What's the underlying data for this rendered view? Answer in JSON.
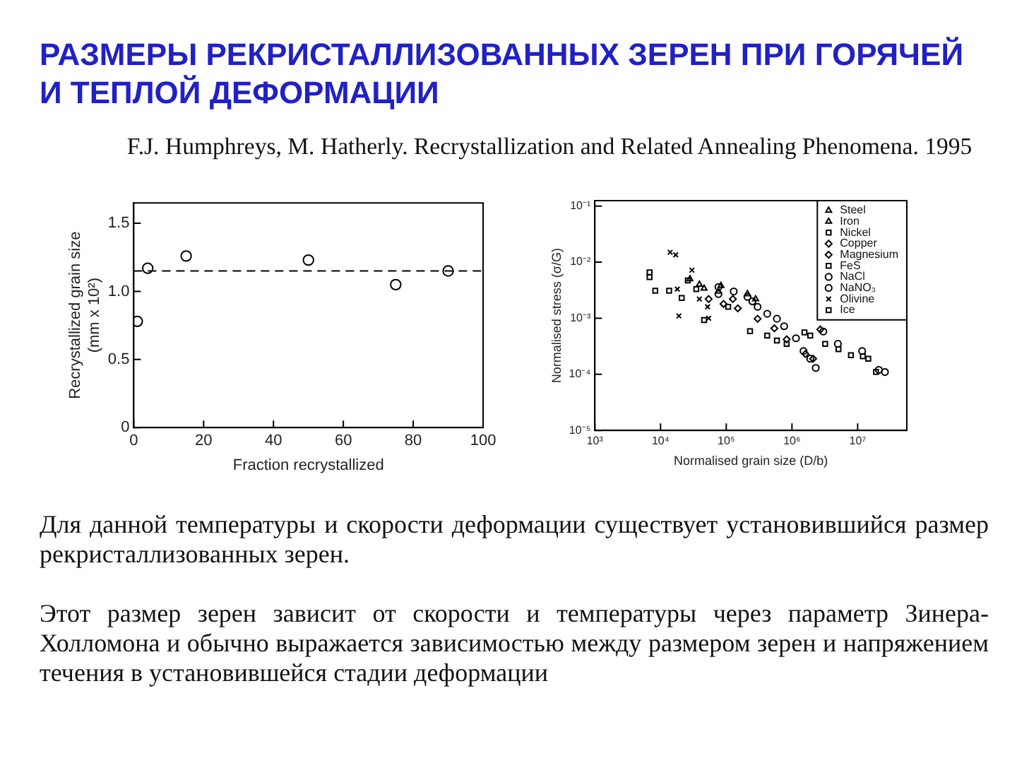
{
  "chart_data": [
    {
      "type": "scatter",
      "title": "РАЗМЕРЫ РЕКРИСТАЛЛИЗОВАННЫХ ЗЕРЕН ПРИ ГОРЯЧЕЙ И ТЕПЛОЙ ДЕФОРМАЦИИ",
      "subtitle": "F.J. Humphreys, M. Hatherly. Recrystallization and Related Annealing Phenomena. 1995",
      "annotations": [
        "Для данной температуры и скорости деформации существует установившийся размер рекристаллизованных зерен.",
        "Этот размер зерен зависит от скорости и температуры через параметр Зинера-Холломона и обычно выражается зависимостью между размером зерен и напряжением течения в установившейся стадии деформации"
      ],
      "xlabel": "Fraction recrystallized",
      "ylabel": "Recrystallized grain size\n(mm x 10²)",
      "x": [
        1,
        4,
        15,
        50,
        75,
        90
      ],
      "series": [
        {
          "color": "#000000",
          "values": [
            0.78,
            1.17,
            1.26,
            1.23,
            1.05,
            1.15
          ]
        }
      ],
      "xlim": [
        0,
        100
      ],
      "ylim": [
        0,
        1.65
      ],
      "xticks": [
        0,
        20,
        40,
        60,
        80,
        100
      ],
      "yticks": [
        0,
        0.5,
        {
          "value": 1,
          "label": "1.0"
        },
        1.5
      ],
      "marker": "circle",
      "ref_lines": [
        {
          "axis": "y",
          "value": 1.15,
          "color": "#000000",
          "line_style": "dashed"
        }
      ]
    },
    {
      "type": "scatter",
      "log": "xy",
      "xlabel": "Normalised grain size (D/b)",
      "ylabel": "Normalised stress (σ/G)",
      "xlim": [
        1000,
        56000000
      ],
      "ylim": [
        1e-05,
        0.125
      ],
      "xticks": [
        {
          "value": 1000,
          "label": "10³"
        },
        {
          "value": 10000,
          "label": "10⁴"
        },
        {
          "value": 100000,
          "label": "10⁵"
        },
        {
          "value": 1000000,
          "label": "10⁶"
        },
        {
          "value": 10000000,
          "label": "10⁷"
        }
      ],
      "yticks": [
        {
          "value": 0.1,
          "label": "10⁻¹"
        },
        {
          "value": 0.01,
          "label": "10⁻²"
        },
        {
          "value": 0.001,
          "label": "10⁻³"
        },
        {
          "value": 0.0001,
          "label": "10⁻⁴"
        },
        {
          "value": 1e-05,
          "label": "10⁻⁵"
        }
      ],
      "legend": "top right",
      "series": [
        {
          "name": "Steel",
          "color": "#000000",
          "marker": "triangle",
          "x": [
            28000,
            39000,
            46000,
            76000
          ],
          "values": [
            0.005,
            0.004,
            0.0034,
            0.003
          ]
        },
        {
          "name": "Iron",
          "color": "#000000",
          "marker": "triangle",
          "x": [
            83000,
            210000,
            280000
          ],
          "values": [
            0.0038,
            0.0027,
            0.0022
          ]
        },
        {
          "name": "Nickel",
          "color": "#000000",
          "marker": "square",
          "x": [
            26000,
            35000,
            107000,
            230000,
            420000,
            590000,
            830000
          ],
          "values": [
            0.0047,
            0.0033,
            0.0016,
            0.00059,
            0.00049,
            0.0004,
            0.00035
          ]
        },
        {
          "name": "Copper",
          "color": "#000000",
          "marker": "diamond",
          "x": [
            54000,
            91000,
            150000,
            2700000
          ],
          "values": [
            0.0022,
            0.0018,
            0.0015,
            0.00063
          ]
        },
        {
          "name": "Magnesium",
          "color": "#000000",
          "marker": "diamond",
          "x": [
            126000,
            300000,
            540000,
            830000,
            1600000,
            2100000
          ],
          "values": [
            0.0022,
            0.00098,
            0.00066,
            0.00042,
            0.00023,
            0.00019
          ]
        },
        {
          "name": "FeS",
          "color": "#000000",
          "marker": "square",
          "x": [
            6800,
            6800,
            8300,
            13500,
            21000,
            46000
          ],
          "values": [
            0.0066,
            0.0054,
            0.0031,
            0.0031,
            0.0023,
            0.00093
          ]
        },
        {
          "name": "NaCl",
          "color": "#000000",
          "marker": "circle",
          "x": [
            76000,
            3000000,
            5000000,
            11700000,
            21000000,
            26000000
          ],
          "values": [
            0.0027,
            0.00058,
            0.00035,
            0.00026,
            0.00012,
            0.00011
          ]
        },
        {
          "name": "NaNO₃",
          "color": "#000000",
          "marker": "circle",
          "x": [
            76000,
            130000,
            210000,
            250000,
            300000,
            420000,
            590000,
            760000,
            1150000,
            1500000,
            1900000,
            2300000
          ],
          "values": [
            0.0036,
            0.003,
            0.0024,
            0.002,
            0.0016,
            0.0012,
            0.00098,
            0.00072,
            0.00044,
            0.00026,
            0.00019,
            0.00013
          ]
        },
        {
          "name": "Olivine",
          "color": "#000000",
          "marker": "cross",
          "x": [
            14000,
            17000,
            30000,
            18000,
            19000,
            54000,
            39000,
            52000
          ],
          "values": [
            0.015,
            0.0135,
            0.0072,
            0.0033,
            0.0011,
            0.001,
            0.0022,
            0.0016
          ]
        },
        {
          "name": "Ice",
          "color": "#000000",
          "marker": "square",
          "x": [
            1550000,
            1900000,
            3200000,
            5100000,
            7900000,
            12000000,
            14500000,
            19000000
          ],
          "values": [
            0.00056,
            0.00049,
            0.00035,
            0.00028,
            0.00022,
            0.00021,
            0.00019,
            0.00011
          ]
        }
      ]
    }
  ]
}
